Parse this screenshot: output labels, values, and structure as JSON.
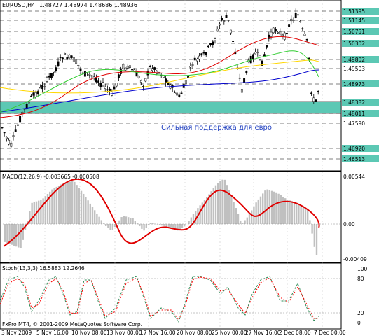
{
  "header": {
    "symbol": "EURUSD,H4",
    "ohlc": "1.48727 1.48974 1.48686 1.48936"
  },
  "price_axis": {
    "ticks": [
      "1.51395",
      "1.51145",
      "1.50751",
      "1.50302",
      "1.49802",
      "1.49503",
      "1.48973",
      "1.48382",
      "1.48011",
      "1.47590",
      "1.46920",
      "1.46513"
    ],
    "highlighted": [
      "1.51395",
      "1.51145",
      "1.50751",
      "1.50302",
      "1.49802",
      "1.48973",
      "1.48382",
      "1.48011",
      "1.46920",
      "1.46513"
    ]
  },
  "annotation": "Сильная поддержка для евро",
  "macd": {
    "title": "MACD(12,26,9) -0.003665 -0.000508",
    "ticks": [
      "0.00544",
      "0.00",
      "-0.00409"
    ]
  },
  "stoch": {
    "title": "Stoch(13,3,3) 16.5883 12.2646",
    "ticks": [
      "100",
      "80",
      "20",
      "0"
    ]
  },
  "time_axis": [
    "3 Nov 2009",
    "5 Nov 16:00",
    "10 Nov 08:00",
    "13 Nov 00:00",
    "17 Nov 16:00",
    "20 Nov 08:00",
    "25 Nov 00:00",
    "27 Nov 16:00",
    "2 Dec 08:00",
    "7 Dec 00:00"
  ],
  "copyright": "FxPro MT4, © 2001-2009 MetaQuotes Software Corp.",
  "colors": {
    "support_zone": "#5cc8b4",
    "macd_signal": "#e00000",
    "macd_hist": "#c0c0c0",
    "ma_red": "#e00000",
    "ma_green": "#32cd32",
    "ma_gold": "#ffd700",
    "ma_blue": "#0000cd",
    "stoch_main": "#2e8b57",
    "stoch_signal": "#ff0000"
  }
}
